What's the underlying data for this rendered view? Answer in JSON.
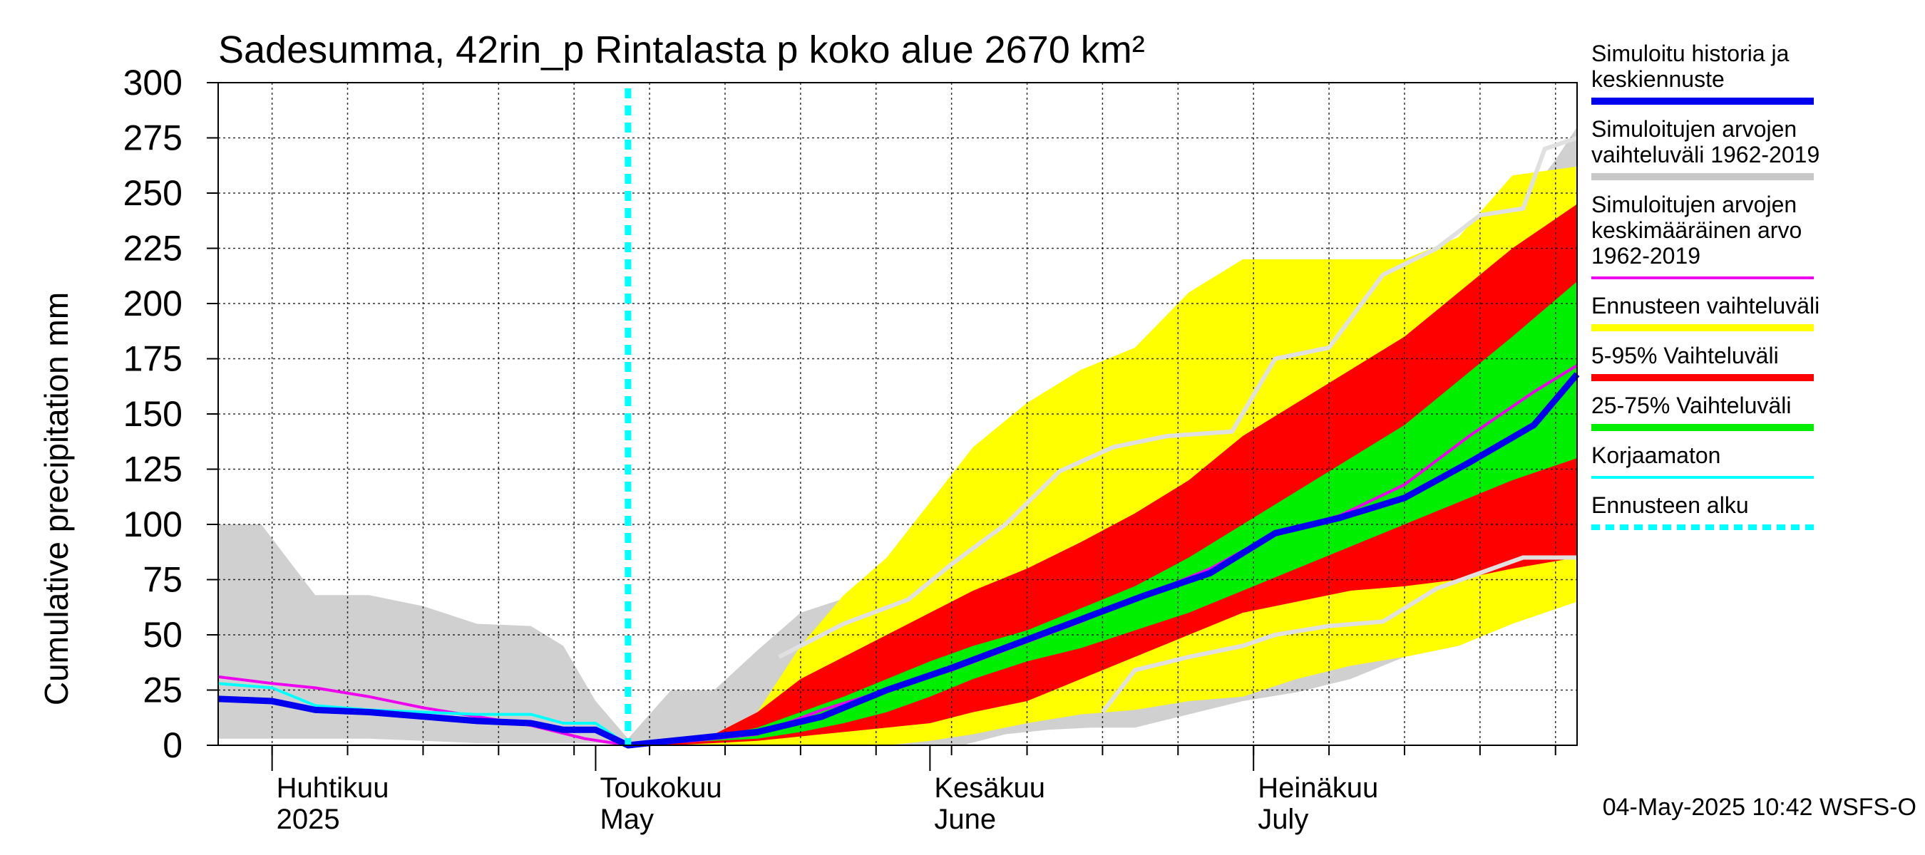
{
  "chart_data": {
    "type": "area",
    "title": "Sadesumma, 42rin_p Rintalasta p koko alue 2670 km²",
    "ylabel": "Cumulative precipitation   mm",
    "ylim": [
      0,
      300
    ],
    "y_ticks": [
      "0",
      "25",
      "50",
      "75",
      "100",
      "125",
      "150",
      "175",
      "200",
      "225",
      "250",
      "275",
      "300"
    ],
    "x_range": [
      "2025-03-27",
      "2025-07-31"
    ],
    "months": [
      {
        "date": "2025-04-01",
        "fi": "Huhtikuu",
        "en": "2025"
      },
      {
        "date": "2025-05-01",
        "fi": "Toukokuu",
        "en": "May"
      },
      {
        "date": "2025-06-01",
        "fi": "Kesäkuu",
        "en": "June"
      },
      {
        "date": "2025-07-01",
        "fi": "Heinäkuu",
        "en": "July"
      }
    ],
    "forecast_start": "2025-05-04",
    "legend": [
      {
        "label_lines": [
          "Simuloitu historia ja",
          "keskiennuste"
        ],
        "color": "#0000ee",
        "style": "thick"
      },
      {
        "label_lines": [
          "Simuloitujen arvojen",
          "vaihteluväli 1962-2019"
        ],
        "color": "#c8c8c8",
        "style": "thick"
      },
      {
        "label_lines": [
          "Simuloitujen arvojen",
          "keskimääräinen arvo",
          "   1962-2019"
        ],
        "color": "#ee00ee",
        "style": "thin"
      },
      {
        "label_lines": [
          "Ennusteen vaihteluväli"
        ],
        "color": "#ffff00",
        "style": "thick"
      },
      {
        "label_lines": [
          "5-95% Vaihteluväli"
        ],
        "color": "#ff0000",
        "style": "thick"
      },
      {
        "label_lines": [
          "25-75% Vaihteluväli"
        ],
        "color": "#00ee00",
        "style": "thick"
      },
      {
        "label_lines": [
          "Korjaamaton"
        ],
        "color": "#00ffff",
        "style": "thin"
      },
      {
        "label_lines": [
          "Ennusteen alku"
        ],
        "color": "#00ffff",
        "style": "dotted"
      }
    ],
    "series": [
      {
        "name": "Simuloitujen arvojen vaihteluväli 1962-2019",
        "kind": "band",
        "color": "#d0d0d0",
        "x": [
          "2025-03-27",
          "2025-03-31",
          "2025-04-05",
          "2025-04-10",
          "2025-04-15",
          "2025-04-20",
          "2025-04-25",
          "2025-04-28",
          "2025-05-01",
          "2025-05-04",
          "2025-05-08",
          "2025-05-12",
          "2025-05-16",
          "2025-05-20",
          "2025-05-25",
          "2025-05-30",
          "2025-06-04",
          "2025-06-08",
          "2025-06-12",
          "2025-06-16",
          "2025-06-20",
          "2025-06-25",
          "2025-06-30",
          "2025-07-05",
          "2025-07-10",
          "2025-07-15",
          "2025-07-20",
          "2025-07-25",
          "2025-07-29",
          "2025-07-31"
        ],
        "upper": [
          100,
          100,
          68,
          68,
          63,
          55,
          54,
          45,
          20,
          3,
          25,
          25,
          43,
          60,
          68,
          80,
          80,
          124,
          126,
          138,
          140,
          141,
          152,
          180,
          200,
          220,
          226,
          240,
          265,
          280
        ],
        "lower": [
          3,
          3,
          3,
          3,
          2,
          1,
          1,
          1,
          1,
          0,
          0,
          0,
          0,
          0,
          0,
          0,
          0,
          5,
          7,
          8,
          8,
          14,
          20,
          24,
          30,
          40,
          45,
          55,
          65,
          65
        ]
      },
      {
        "name": "Ennusteen vaihteluväli",
        "kind": "band",
        "color": "#ffff00",
        "x": [
          "2025-05-04",
          "2025-05-08",
          "2025-05-12",
          "2025-05-16",
          "2025-05-20",
          "2025-05-24",
          "2025-05-28",
          "2025-06-01",
          "2025-06-05",
          "2025-06-10",
          "2025-06-15",
          "2025-06-20",
          "2025-06-25",
          "2025-06-30",
          "2025-07-05",
          "2025-07-10",
          "2025-07-15",
          "2025-07-20",
          "2025-07-25",
          "2025-07-31"
        ],
        "upper": [
          0,
          3,
          5,
          15,
          45,
          68,
          85,
          110,
          135,
          155,
          170,
          180,
          205,
          220,
          220,
          220,
          220,
          230,
          258,
          262
        ],
        "lower": [
          0,
          0,
          0,
          0,
          0,
          0,
          0,
          2,
          5,
          10,
          14,
          16,
          20,
          22,
          30,
          36,
          40,
          45,
          55,
          65
        ]
      },
      {
        "name": "5-95% Vaihteluväli",
        "kind": "band",
        "color": "#ff0000",
        "x": [
          "2025-05-04",
          "2025-05-08",
          "2025-05-12",
          "2025-05-16",
          "2025-05-20",
          "2025-05-24",
          "2025-05-28",
          "2025-06-01",
          "2025-06-05",
          "2025-06-10",
          "2025-06-15",
          "2025-06-20",
          "2025-06-25",
          "2025-06-30",
          "2025-07-05",
          "2025-07-10",
          "2025-07-15",
          "2025-07-20",
          "2025-07-25",
          "2025-07-31"
        ],
        "upper": [
          0,
          2,
          5,
          15,
          30,
          40,
          50,
          60,
          70,
          80,
          92,
          105,
          120,
          140,
          155,
          170,
          185,
          205,
          225,
          245
        ],
        "lower": [
          0,
          0,
          1,
          2,
          4,
          6,
          8,
          10,
          15,
          20,
          30,
          40,
          50,
          60,
          65,
          70,
          72,
          75,
          80,
          85
        ]
      },
      {
        "name": "25-75% Vaihteluväli",
        "kind": "band",
        "color": "#00ee00",
        "x": [
          "2025-05-04",
          "2025-05-08",
          "2025-05-12",
          "2025-05-16",
          "2025-05-20",
          "2025-05-24",
          "2025-05-28",
          "2025-06-01",
          "2025-06-05",
          "2025-06-10",
          "2025-06-15",
          "2025-06-20",
          "2025-06-25",
          "2025-06-30",
          "2025-07-05",
          "2025-07-10",
          "2025-07-15",
          "2025-07-20",
          "2025-07-25",
          "2025-07-31"
        ],
        "upper": [
          0,
          2,
          4,
          8,
          15,
          22,
          30,
          38,
          45,
          52,
          62,
          72,
          85,
          100,
          115,
          130,
          145,
          165,
          185,
          210
        ],
        "lower": [
          0,
          1,
          2,
          3,
          6,
          10,
          15,
          22,
          30,
          38,
          44,
          52,
          60,
          70,
          80,
          90,
          100,
          110,
          120,
          130
        ]
      },
      {
        "name": "Simuloitujen arvojen keskimääräinen arvo 1962-2019",
        "kind": "line",
        "color": "#ee00ee",
        "x": [
          "2025-03-27",
          "2025-04-01",
          "2025-04-05",
          "2025-04-10",
          "2025-04-15",
          "2025-04-20",
          "2025-04-25",
          "2025-04-30",
          "2025-05-04",
          "2025-05-10",
          "2025-05-16",
          "2025-05-22",
          "2025-05-28",
          "2025-06-03",
          "2025-06-09",
          "2025-06-15",
          "2025-06-21",
          "2025-06-27",
          "2025-07-03",
          "2025-07-09",
          "2025-07-15",
          "2025-07-21",
          "2025-07-27",
          "2025-07-31"
        ],
        "values": [
          31,
          28,
          26,
          22,
          17,
          13,
          9,
          3,
          0,
          2,
          5,
          16,
          25,
          34,
          45,
          56,
          68,
          80,
          96,
          104,
          118,
          140,
          160,
          172
        ]
      },
      {
        "name": "Simuloitu historia ja keskiennuste",
        "kind": "line",
        "color": "#0000ee",
        "x": [
          "2025-03-27",
          "2025-04-01",
          "2025-04-05",
          "2025-04-10",
          "2025-04-15",
          "2025-04-20",
          "2025-04-25",
          "2025-04-28",
          "2025-05-01",
          "2025-05-04",
          "2025-05-10",
          "2025-05-16",
          "2025-05-22",
          "2025-05-28",
          "2025-06-03",
          "2025-06-09",
          "2025-06-15",
          "2025-06-21",
          "2025-06-27",
          "2025-07-03",
          "2025-07-09",
          "2025-07-15",
          "2025-07-21",
          "2025-07-27",
          "2025-07-31"
        ],
        "values": [
          21,
          20,
          16,
          15,
          13,
          11,
          10,
          7,
          7,
          0,
          3,
          6,
          13,
          25,
          35,
          46,
          57,
          68,
          78,
          96,
          103,
          112,
          128,
          145,
          168
        ]
      },
      {
        "name": "Korjaamaton",
        "kind": "line",
        "color": "#00ffff",
        "x": [
          "2025-03-27",
          "2025-04-01",
          "2025-04-05",
          "2025-04-10",
          "2025-04-15",
          "2025-04-20",
          "2025-04-25",
          "2025-04-28",
          "2025-05-01",
          "2025-05-04"
        ],
        "values": [
          28,
          26,
          18,
          16,
          15,
          14,
          14,
          10,
          10,
          0
        ]
      },
      {
        "name": "history_low",
        "kind": "line",
        "color": "#e0e0e0",
        "x": [
          "2025-06-17",
          "2025-06-20",
          "2025-06-25",
          "2025-06-30",
          "2025-07-03",
          "2025-07-08",
          "2025-07-13",
          "2025-07-18",
          "2025-07-22",
          "2025-07-26",
          "2025-07-31"
        ],
        "values": [
          15,
          34,
          40,
          45,
          50,
          54,
          56,
          71,
          78,
          85,
          85
        ]
      },
      {
        "name": "history_high",
        "kind": "line",
        "color": "#e0e0e0",
        "x": [
          "2025-05-18",
          "2025-05-24",
          "2025-05-30",
          "2025-06-03",
          "2025-06-08",
          "2025-06-13",
          "2025-06-18",
          "2025-06-23",
          "2025-06-29",
          "2025-07-03",
          "2025-07-08",
          "2025-07-13",
          "2025-07-18",
          "2025-07-22",
          "2025-07-26",
          "2025-07-28",
          "2025-07-31"
        ],
        "values": [
          40,
          55,
          66,
          82,
          100,
          124,
          135,
          140,
          142,
          175,
          180,
          213,
          225,
          240,
          243,
          270,
          275
        ]
      }
    ]
  },
  "footer": "04-May-2025 10:42 WSFS-O"
}
